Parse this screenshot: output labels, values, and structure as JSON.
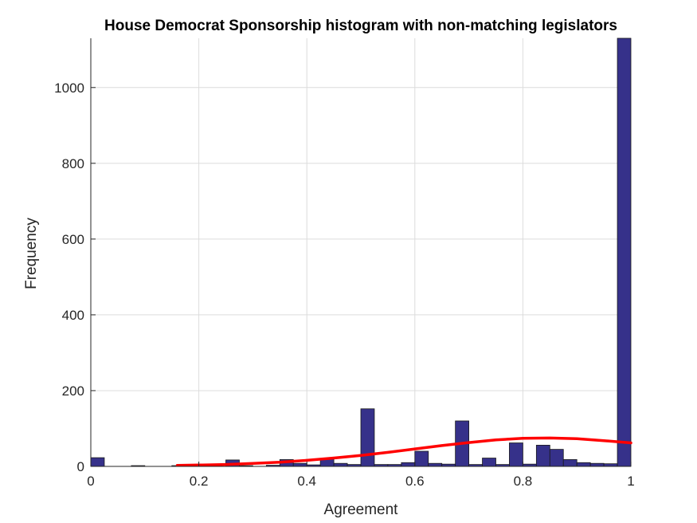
{
  "chart_data": {
    "type": "bar",
    "title": "House Democrat Sponsorship histogram with non-matching legislators",
    "xlabel": "Agreement",
    "ylabel": "Frequency",
    "xlim": [
      0,
      1
    ],
    "ylim": [
      0,
      1130
    ],
    "grid": true,
    "xticks": [
      0,
      0.2,
      0.4,
      0.6,
      0.8,
      1
    ],
    "xtick_labels": [
      "0",
      "0.2",
      "0.4",
      "0.6",
      "0.8",
      "1"
    ],
    "yticks": [
      0,
      200,
      400,
      600,
      800,
      1000
    ],
    "ytick_labels": [
      "0",
      "200",
      "400",
      "600",
      "800",
      "1000"
    ],
    "bar_color": "#36318a",
    "bar_edge_color": "#1a1a1a",
    "fit_color": "#ff0000",
    "bin_width": 0.025,
    "bins": [
      {
        "x": 0.0125,
        "value": 23
      },
      {
        "x": 0.0375,
        "value": 0
      },
      {
        "x": 0.0625,
        "value": 0
      },
      {
        "x": 0.0875,
        "value": 2
      },
      {
        "x": 0.1125,
        "value": 0
      },
      {
        "x": 0.1375,
        "value": 0
      },
      {
        "x": 0.1625,
        "value": 2
      },
      {
        "x": 0.1875,
        "value": 2
      },
      {
        "x": 0.2125,
        "value": 3
      },
      {
        "x": 0.2375,
        "value": 0
      },
      {
        "x": 0.2625,
        "value": 17
      },
      {
        "x": 0.2875,
        "value": 2
      },
      {
        "x": 0.3125,
        "value": 0
      },
      {
        "x": 0.3375,
        "value": 3
      },
      {
        "x": 0.3625,
        "value": 18
      },
      {
        "x": 0.3875,
        "value": 8
      },
      {
        "x": 0.4125,
        "value": 4
      },
      {
        "x": 0.4375,
        "value": 20
      },
      {
        "x": 0.4625,
        "value": 8
      },
      {
        "x": 0.4875,
        "value": 5
      },
      {
        "x": 0.5125,
        "value": 152
      },
      {
        "x": 0.5375,
        "value": 5
      },
      {
        "x": 0.5625,
        "value": 5
      },
      {
        "x": 0.5875,
        "value": 10
      },
      {
        "x": 0.6125,
        "value": 40
      },
      {
        "x": 0.6375,
        "value": 8
      },
      {
        "x": 0.6625,
        "value": 6
      },
      {
        "x": 0.6875,
        "value": 120
      },
      {
        "x": 0.7125,
        "value": 5
      },
      {
        "x": 0.7375,
        "value": 22
      },
      {
        "x": 0.7625,
        "value": 5
      },
      {
        "x": 0.7875,
        "value": 62
      },
      {
        "x": 0.8125,
        "value": 6
      },
      {
        "x": 0.8375,
        "value": 56
      },
      {
        "x": 0.8625,
        "value": 45
      },
      {
        "x": 0.8875,
        "value": 18
      },
      {
        "x": 0.9125,
        "value": 10
      },
      {
        "x": 0.9375,
        "value": 8
      },
      {
        "x": 0.9625,
        "value": 7
      },
      {
        "x": 0.9875,
        "value": 1130
      }
    ],
    "fit_curve": {
      "x": [
        0.16,
        0.2,
        0.25,
        0.3,
        0.35,
        0.4,
        0.45,
        0.5,
        0.55,
        0.6,
        0.65,
        0.7,
        0.75,
        0.8,
        0.85,
        0.9,
        0.95,
        1.0
      ],
      "y": [
        2.5,
        3.5,
        5,
        8,
        11,
        16,
        22,
        29,
        37,
        46,
        55,
        63,
        70,
        74,
        75,
        73,
        68,
        62
      ]
    }
  }
}
